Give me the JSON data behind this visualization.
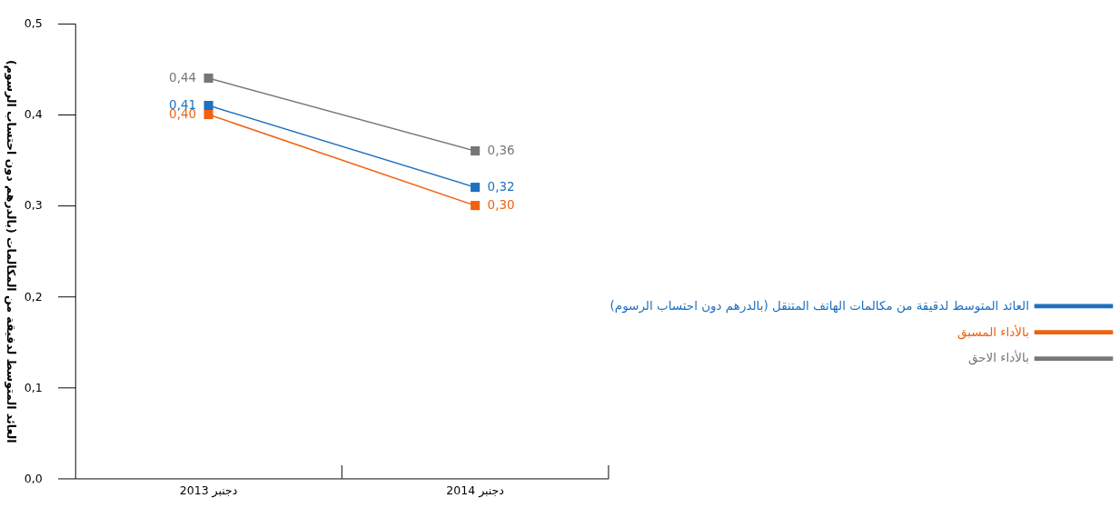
{
  "chart_data": {
    "type": "line",
    "ylabel": "العائد المتوسط لدقيقة من المكالمات (بالدرهم دون احتساب الرسوم)",
    "categories": [
      "دجنبر 2013",
      "دجنبر 2014"
    ],
    "series": [
      {
        "name": "العائد المتوسط لدقيقة من مكالمات الهاتف المتنقل (بالدرهم دون احتساب الرسوم)",
        "color": "#1f70bf",
        "values": [
          0.41,
          0.32
        ],
        "value_labels": [
          "0,41",
          "0,32"
        ]
      },
      {
        "name": "بالأداء المسبق",
        "color": "#f0620f",
        "values": [
          0.4,
          0.3
        ],
        "value_labels": [
          "0,40",
          "0,30"
        ]
      },
      {
        "name": "بالأداء الاحق",
        "color": "#777777",
        "values": [
          0.44,
          0.36
        ],
        "value_labels": [
          "0,44",
          "0,36"
        ]
      }
    ],
    "ylim": [
      0,
      0.5
    ],
    "yticks": [
      {
        "value": 0,
        "label": "0,0"
      },
      {
        "value": 0.1,
        "label": "0,1"
      },
      {
        "value": 0.2,
        "label": "0,2"
      },
      {
        "value": 0.3,
        "label": "0,3"
      },
      {
        "value": 0.4,
        "label": "0,4"
      },
      {
        "value": 0.5,
        "label": "0,5"
      }
    ],
    "grid": false,
    "legend": "right",
    "marker": "square",
    "line_style": "solid"
  }
}
